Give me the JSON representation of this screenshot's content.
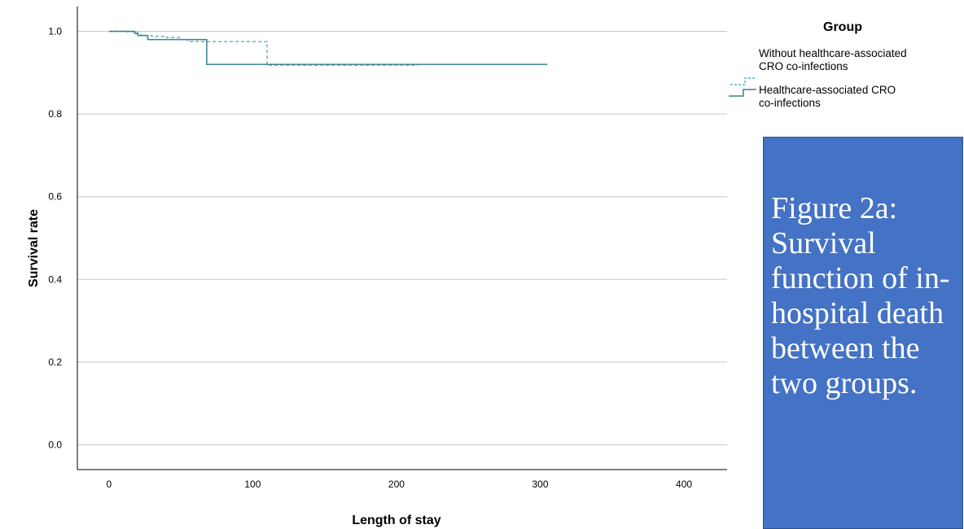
{
  "chart_data": {
    "type": "line",
    "xlabel": "Length of stay",
    "ylabel": "Survival rate",
    "xlim": [
      -22,
      430
    ],
    "ylim": [
      -0.06,
      1.06
    ],
    "xticks": [
      0,
      100,
      200,
      300,
      400
    ],
    "yticks": [
      0.0,
      0.2,
      0.4,
      0.6,
      0.8,
      1.0
    ],
    "ytick_labels": [
      "0.0",
      "0.2",
      "0.4",
      "0.6",
      "0.8",
      "1.0"
    ],
    "grid": "horizontal",
    "legend": {
      "title": "Group",
      "placement": "right",
      "entries": [
        {
          "lines": [
            "Without healthcare-associated",
            "CRO co-infections"
          ]
        },
        {
          "lines": [
            "Healthcare-associated CRO",
            "co-infections"
          ]
        }
      ]
    },
    "series": [
      {
        "style": "dashed",
        "color": "#5fb3c9",
        "x": [
          0,
          10,
          20,
          22,
          30,
          40,
          50,
          55,
          110,
          215
        ],
        "y": [
          1.0,
          0.999,
          0.995,
          0.99,
          0.988,
          0.985,
          0.98,
          0.975,
          0.918,
          0.918
        ]
      },
      {
        "style": "solid",
        "color": "#3d7f8d",
        "x": [
          0,
          18,
          20,
          27,
          68,
          305
        ],
        "y": [
          1.0,
          0.995,
          0.99,
          0.98,
          0.92,
          0.92
        ]
      }
    ]
  },
  "caption": {
    "text": "Figure 2a: Survival function of in-hospital death between the two groups.",
    "box_color": "#4472c4",
    "text_color": "#ffffff"
  }
}
